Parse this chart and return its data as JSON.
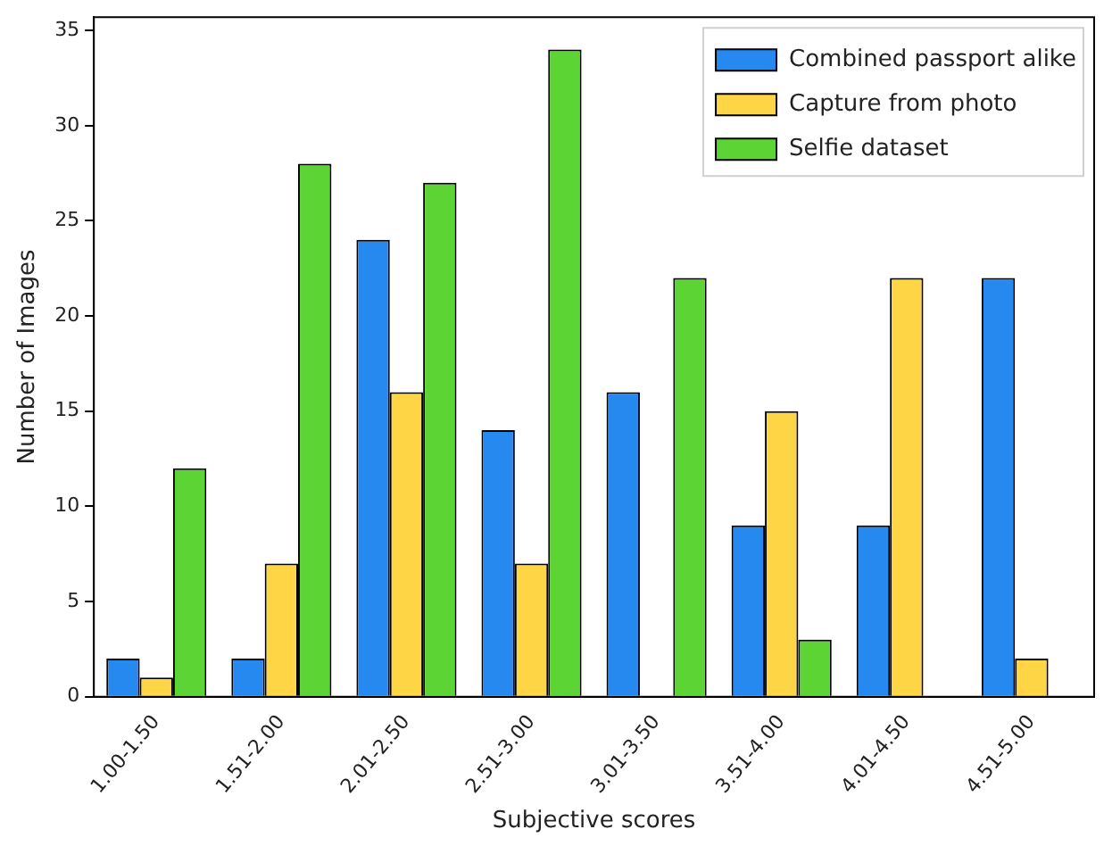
{
  "chart_data": {
    "type": "bar",
    "xlabel": "Subjective scores",
    "ylabel": "Number of Images",
    "categories": [
      "1.00-1.50",
      "1.51-2.00",
      "2.01-2.50",
      "2.51-3.00",
      "3.01-3.50",
      "3.51-4.00",
      "4.01-4.50",
      "4.51-5.00"
    ],
    "series": [
      {
        "name": "Combined passport alike",
        "color": "#2589f0",
        "values": [
          2,
          2,
          24,
          14,
          16,
          9,
          9,
          22
        ]
      },
      {
        "name": "Capture from photo",
        "color": "#fdd545",
        "values": [
          1,
          7,
          16,
          7,
          0,
          15,
          22,
          2
        ]
      },
      {
        "name": "Selfie dataset",
        "color": "#5cd433",
        "values": [
          12,
          28,
          27,
          34,
          22,
          3,
          0,
          0
        ]
      }
    ],
    "ylim": [
      0,
      35.7
    ],
    "yticks": [
      0,
      5,
      10,
      15,
      20,
      25,
      30,
      35
    ],
    "grid": false,
    "legend": "top right"
  }
}
